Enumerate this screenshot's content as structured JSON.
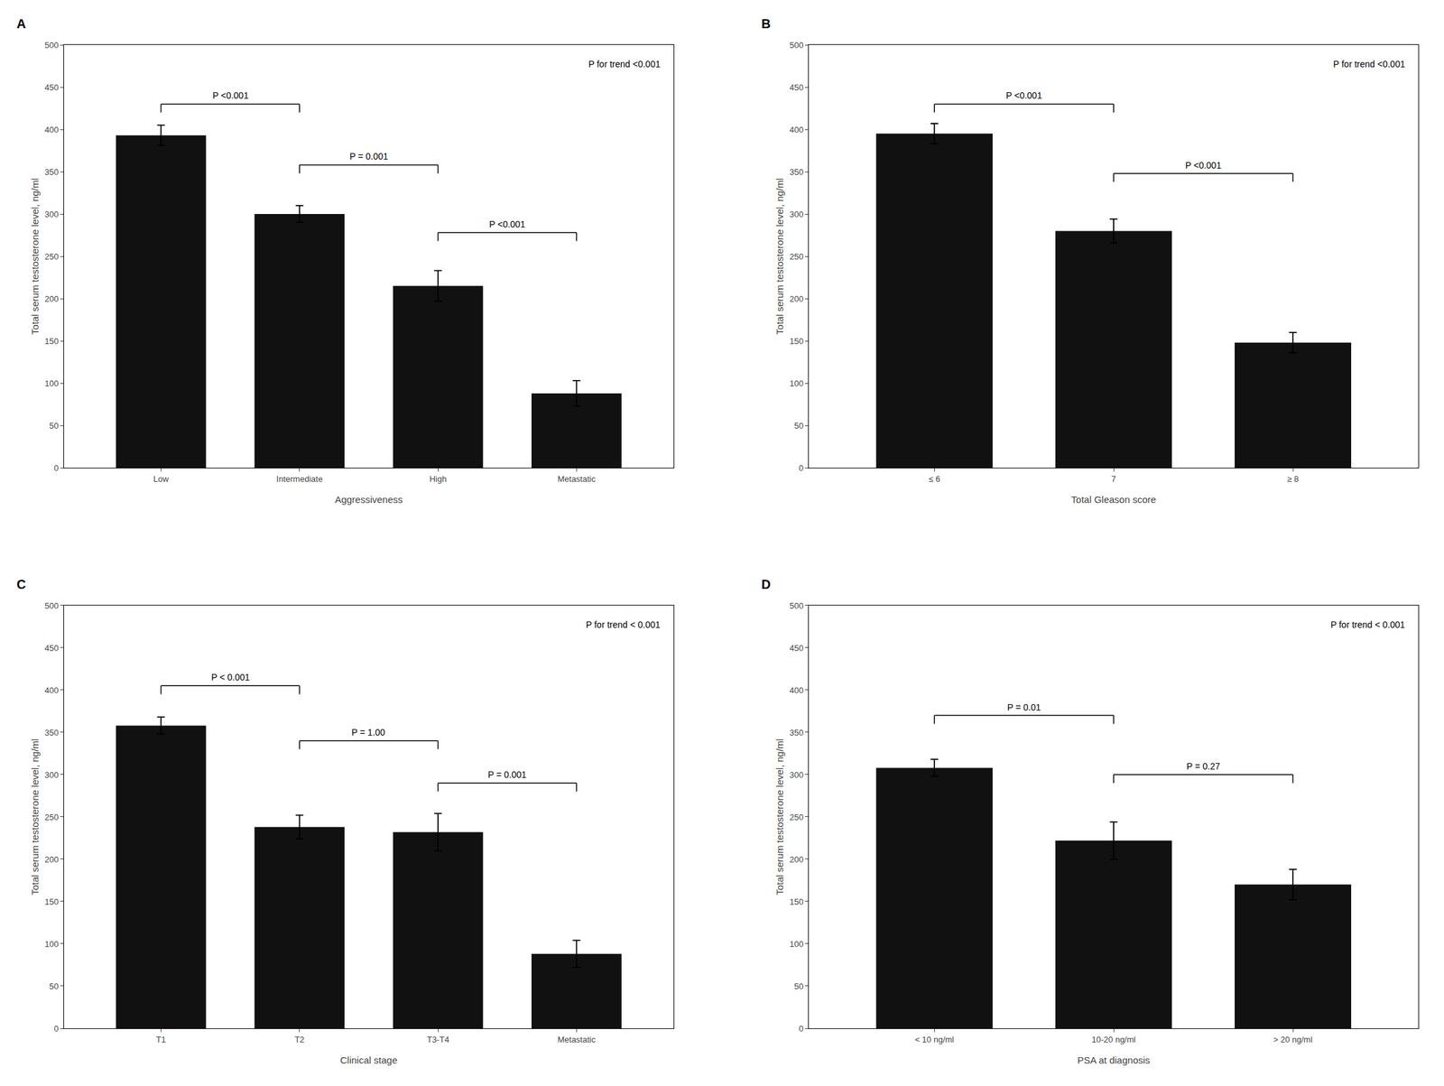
{
  "chart_data": [
    {
      "type": "bar",
      "title": "A",
      "categories": [
        "Low",
        "Intermediate",
        "High",
        "Metastatic"
      ],
      "values": [
        393,
        300,
        215,
        88
      ],
      "errors": [
        12,
        10,
        18,
        15
      ],
      "x_label": "Aggressiveness",
      "y_label": "Total serum testosterone level, ng/ml",
      "ylim": [
        0,
        500
      ],
      "yticks": [
        0,
        50,
        100,
        150,
        200,
        250,
        300,
        350,
        400,
        450,
        500
      ],
      "color": "#111111",
      "grid": false,
      "annotations": [
        {
          "text": "P for trend <0.001"
        }
      ],
      "brackets": [
        {
          "from": 0,
          "to": 1,
          "y": 430,
          "label": "P <0.001"
        },
        {
          "from": 1,
          "to": 2,
          "y": 358,
          "label": "P = 0.001"
        },
        {
          "from": 2,
          "to": 3,
          "y": 278,
          "label": "P <0.001"
        }
      ]
    },
    {
      "type": "bar",
      "title": "B",
      "categories": [
        "≤ 6",
        "7",
        "≥ 8"
      ],
      "values": [
        395,
        280,
        148
      ],
      "errors": [
        12,
        14,
        12
      ],
      "x_label": "Total Gleason score",
      "y_label": "Total serum testosterone level, ng/ml",
      "ylim": [
        0,
        500
      ],
      "yticks": [
        0,
        50,
        100,
        150,
        200,
        250,
        300,
        350,
        400,
        450,
        500
      ],
      "color": "#111111",
      "grid": false,
      "annotations": [
        {
          "text": "P for trend <0.001"
        }
      ],
      "brackets": [
        {
          "from": 0,
          "to": 1,
          "y": 430,
          "label": "P <0.001"
        },
        {
          "from": 1,
          "to": 2,
          "y": 348,
          "label": "P <0.001"
        }
      ]
    },
    {
      "type": "bar",
      "title": "C",
      "categories": [
        "T1",
        "T2",
        "T3-T4",
        "Metastatic"
      ],
      "values": [
        358,
        238,
        232,
        88
      ],
      "errors": [
        10,
        14,
        22,
        16
      ],
      "x_label": "Clinical stage",
      "y_label": "Total serum testosterone level, ng/ml",
      "ylim": [
        0,
        500
      ],
      "yticks": [
        0,
        50,
        100,
        150,
        200,
        250,
        300,
        350,
        400,
        450,
        500
      ],
      "color": "#111111",
      "grid": false,
      "annotations": [
        {
          "text": "P for trend < 0.001"
        }
      ],
      "brackets": [
        {
          "from": 0,
          "to": 1,
          "y": 405,
          "label": "P < 0.001"
        },
        {
          "from": 1,
          "to": 2,
          "y": 340,
          "label": "P = 1.00"
        },
        {
          "from": 2,
          "to": 3,
          "y": 290,
          "label": "P = 0.001"
        }
      ]
    },
    {
      "type": "bar",
      "title": "D",
      "categories": [
        "< 10 ng/ml",
        "10-20 ng/ml",
        "> 20 ng/ml"
      ],
      "values": [
        308,
        222,
        170
      ],
      "errors": [
        10,
        22,
        18
      ],
      "x_label": "PSA at diagnosis",
      "y_label": "Total serum testosterone level, ng/ml",
      "ylim": [
        0,
        500
      ],
      "yticks": [
        0,
        50,
        100,
        150,
        200,
        250,
        300,
        350,
        400,
        450,
        500
      ],
      "color": "#111111",
      "grid": false,
      "annotations": [
        {
          "text": "P for trend < 0.001"
        }
      ],
      "brackets": [
        {
          "from": 0,
          "to": 1,
          "y": 370,
          "label": "P = 0.01"
        },
        {
          "from": 1,
          "to": 2,
          "y": 300,
          "label": "P = 0.27"
        }
      ]
    }
  ]
}
